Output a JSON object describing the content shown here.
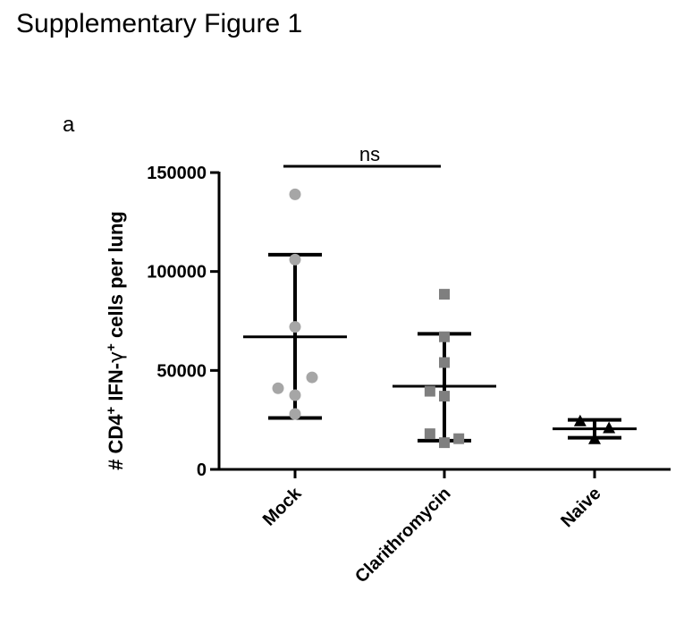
{
  "figure_title": "Supplementary Figure 1",
  "panel_label": "a",
  "chart_data": {
    "type": "scatter",
    "subtype": "dot plot with mean and SD",
    "ylabel_parts": [
      "# CD4",
      "+",
      " IFN-",
      "γ",
      "+",
      " cells per lung"
    ],
    "ylim": [
      0,
      150000
    ],
    "yticks": [
      0,
      50000,
      100000,
      150000
    ],
    "ytick_labels": [
      "0",
      "50000",
      "100000",
      "150000"
    ],
    "categories": [
      "Mock",
      "Clarithromycin",
      "Naive"
    ],
    "series": [
      {
        "category": "Mock",
        "marker": "circle",
        "color": "#a6a6a6",
        "points": [
          {
            "x": 0.0,
            "y": 139000
          },
          {
            "x": 0.0,
            "y": 106000
          },
          {
            "x": 0.0,
            "y": 72000
          },
          {
            "x": -0.2,
            "y": 41000
          },
          {
            "x": 0.0,
            "y": 37500
          },
          {
            "x": 0.2,
            "y": 46500
          },
          {
            "x": 0.0,
            "y": 28000
          }
        ],
        "mean": 67000,
        "upper": 108500,
        "lower": 26000
      },
      {
        "category": "Clarithromycin",
        "marker": "square",
        "color": "#7f7f7f",
        "points": [
          {
            "x": 0.0,
            "y": 88500
          },
          {
            "x": 0.0,
            "y": 67000
          },
          {
            "x": 0.0,
            "y": 54000
          },
          {
            "x": -0.17,
            "y": 39500
          },
          {
            "x": 0.0,
            "y": 37000
          },
          {
            "x": -0.17,
            "y": 18000
          },
          {
            "x": 0.0,
            "y": 13500
          },
          {
            "x": 0.17,
            "y": 15500
          }
        ],
        "mean": 42000,
        "upper": 68500,
        "lower": 14500
      },
      {
        "category": "Naive",
        "marker": "triangle",
        "color": "#000000",
        "points": [
          {
            "x": -0.17,
            "y": 24500
          },
          {
            "x": 0.17,
            "y": 21000
          },
          {
            "x": 0.0,
            "y": 15500
          }
        ],
        "mean": 20500,
        "upper": 25000,
        "lower": 16000
      }
    ],
    "annotations": [
      {
        "text": "ns",
        "from": "Mock",
        "to": "Clarithromycin",
        "y": 153000
      }
    ]
  }
}
